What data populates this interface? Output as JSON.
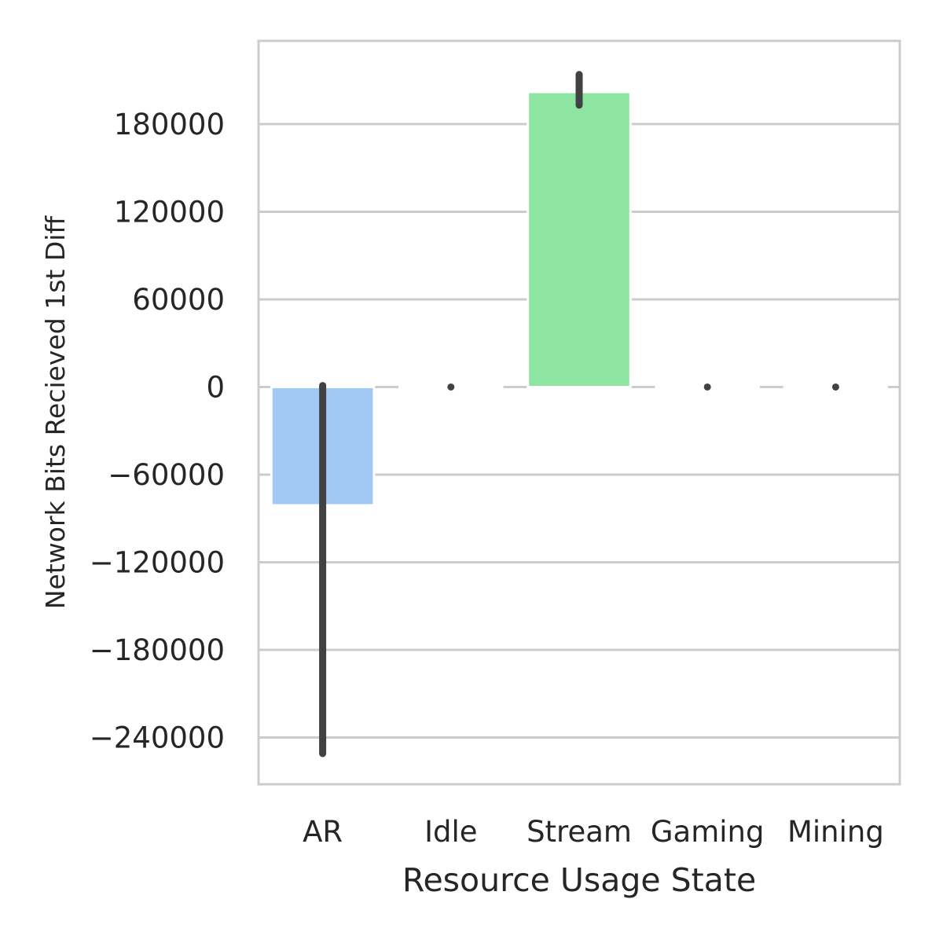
{
  "chart_data": {
    "type": "bar",
    "xlabel": "Resource Usage State",
    "ylabel": "Network Bits Recieved 1st Diff",
    "categories": [
      "AR",
      "Idle",
      "Stream",
      "Gaming",
      "Mining"
    ],
    "values": [
      -81000,
      0,
      202000,
      0,
      0
    ],
    "error_bars": [
      {
        "low": -251000,
        "high": 1000
      },
      {
        "low": 0,
        "high": 0
      },
      {
        "low": 193000,
        "high": 214000
      },
      {
        "low": 0,
        "high": 0
      },
      {
        "low": 0,
        "high": 0
      }
    ],
    "colors": [
      "#a1c9f4",
      "#ffb482",
      "#8de5a1",
      "#ff9f9b",
      "#d0bbff"
    ],
    "error_color": "#424242",
    "ylim": [
      -272000,
      237000
    ],
    "yticks": [
      180000,
      120000,
      60000,
      0,
      -60000,
      -120000,
      -180000,
      -240000
    ],
    "ytick_labels": [
      "180000",
      "120000",
      "60000",
      "0",
      "−60000",
      "−120000",
      "−180000",
      "−240000"
    ],
    "grid": true,
    "grid_color": "#cccccc",
    "legend": false
  }
}
